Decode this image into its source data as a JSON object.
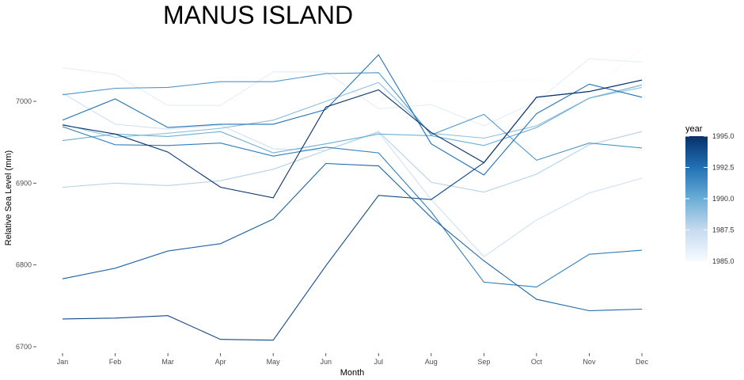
{
  "chart_data": {
    "type": "line",
    "title": "MANUS ISLAND",
    "xlabel": "Month",
    "ylabel": "Relative Sea Level (mm)",
    "categories": [
      "Jan",
      "Feb",
      "Mar",
      "Apr",
      "May",
      "Jun",
      "Jul",
      "Aug",
      "Sep",
      "Oct",
      "Nov",
      "Dec"
    ],
    "ylim": [
      6690,
      7070
    ],
    "yticks": [
      6700,
      6800,
      6900,
      7000
    ],
    "grid": false,
    "color_scale": {
      "name": "year",
      "min": 1985.0,
      "max": 1995.0,
      "ticks": [
        "1985.0",
        "1987.5",
        "1990.0",
        "1992.5",
        "1995.0"
      ],
      "low_color": "#f7fbff",
      "high_color": "#08306b",
      "placement": "right"
    },
    "series": [
      {
        "year": 1985,
        "values": [
          null,
          null,
          null,
          null,
          null,
          null,
          null,
          7025,
          7023,
          7027,
          7012,
          7065
        ]
      },
      {
        "year": 1986,
        "values": [
          7041,
          7033,
          6995,
          6995,
          7036,
          7036,
          6991,
          6996,
          6970,
          7000,
          7052,
          7048
        ]
      },
      {
        "year": 1987,
        "values": [
          7010,
          6972,
          6966,
          6971,
          6942,
          6940,
          6962,
          6880,
          6810,
          6855,
          6888,
          6906
        ]
      },
      {
        "year": 1988,
        "values": [
          6895,
          6900,
          6897,
          6903,
          6917,
          6940,
          6963,
          6901,
          6889,
          6911,
          6947,
          6963
        ]
      },
      {
        "year": 1989,
        "values": [
          6972,
          6956,
          6961,
          6967,
          6977,
          7000,
          7023,
          6961,
          6955,
          6970,
          7004,
          7017
        ]
      },
      {
        "year": 1990,
        "values": [
          6952,
          6960,
          6957,
          6963,
          6937,
          6948,
          6960,
          6958,
          6946,
          6968,
          7004,
          7020
        ]
      },
      {
        "year": 1991,
        "values": [
          7008,
          7016,
          7017,
          7024,
          7024,
          7034,
          7035,
          6959,
          6984,
          6928,
          6949,
          6943
        ]
      },
      {
        "year": 1992,
        "values": [
          6969,
          6947,
          6946,
          6949,
          6933,
          6944,
          6937,
          6865,
          6779,
          6773,
          6813,
          6818
        ]
      },
      {
        "year": 1992.5,
        "values": [
          6977,
          7003,
          6968,
          6972,
          6972,
          6990,
          7057,
          6948,
          6910,
          6985,
          7021,
          7005
        ]
      },
      {
        "year": 1993,
        "values": [
          6783,
          6796,
          6817,
          6826,
          6856,
          6924,
          6921,
          6858,
          6805,
          6758,
          6744,
          6746
        ]
      },
      {
        "year": 1994,
        "values": [
          6734,
          6735,
          6738,
          6709,
          6708,
          6799,
          6885,
          6880,
          6925,
          7005,
          7012,
          7026
        ]
      },
      {
        "year": 1995,
        "values": [
          6971,
          6960,
          6938,
          6895,
          6882,
          6993,
          7014,
          6962,
          6925,
          7005,
          7012,
          7026
        ]
      }
    ]
  }
}
